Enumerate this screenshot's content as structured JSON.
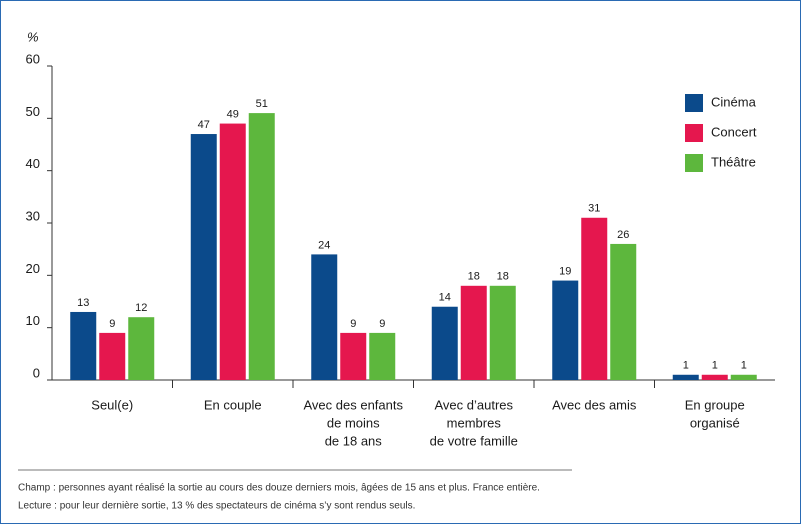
{
  "chart_data": {
    "type": "bar",
    "y_label": "%",
    "categories": [
      [
        "Seul(e)"
      ],
      [
        "En couple"
      ],
      [
        "Avec des enfants",
        "de moins",
        "de 18 ans"
      ],
      [
        "Avec d’autres",
        "membres",
        "de votre famille"
      ],
      [
        "Avec des amis"
      ],
      [
        "En groupe",
        "organisé"
      ]
    ],
    "series": [
      {
        "name": "Cinéma",
        "color": "#0b4a8b",
        "values": [
          13,
          47,
          24,
          14,
          19,
          1
        ]
      },
      {
        "name": "Concert",
        "color": "#e5174e",
        "values": [
          9,
          49,
          9,
          18,
          31,
          1
        ]
      },
      {
        "name": "Théâtre",
        "color": "#5db73d",
        "values": [
          12,
          51,
          9,
          18,
          26,
          1
        ]
      }
    ],
    "ylim": [
      0,
      60
    ],
    "yticks": [
      0,
      10,
      20,
      30,
      40,
      50,
      60
    ],
    "legend": "upper right",
    "notes": [
      "Champ : personnes ayant réalisé la sortie au cours des douze derniers mois, âgées de 15 ans et plus. France entière.",
      "Lecture : pour leur dernière sortie, 13 % des spectateurs de cinéma s’y sont rendus seuls."
    ]
  }
}
